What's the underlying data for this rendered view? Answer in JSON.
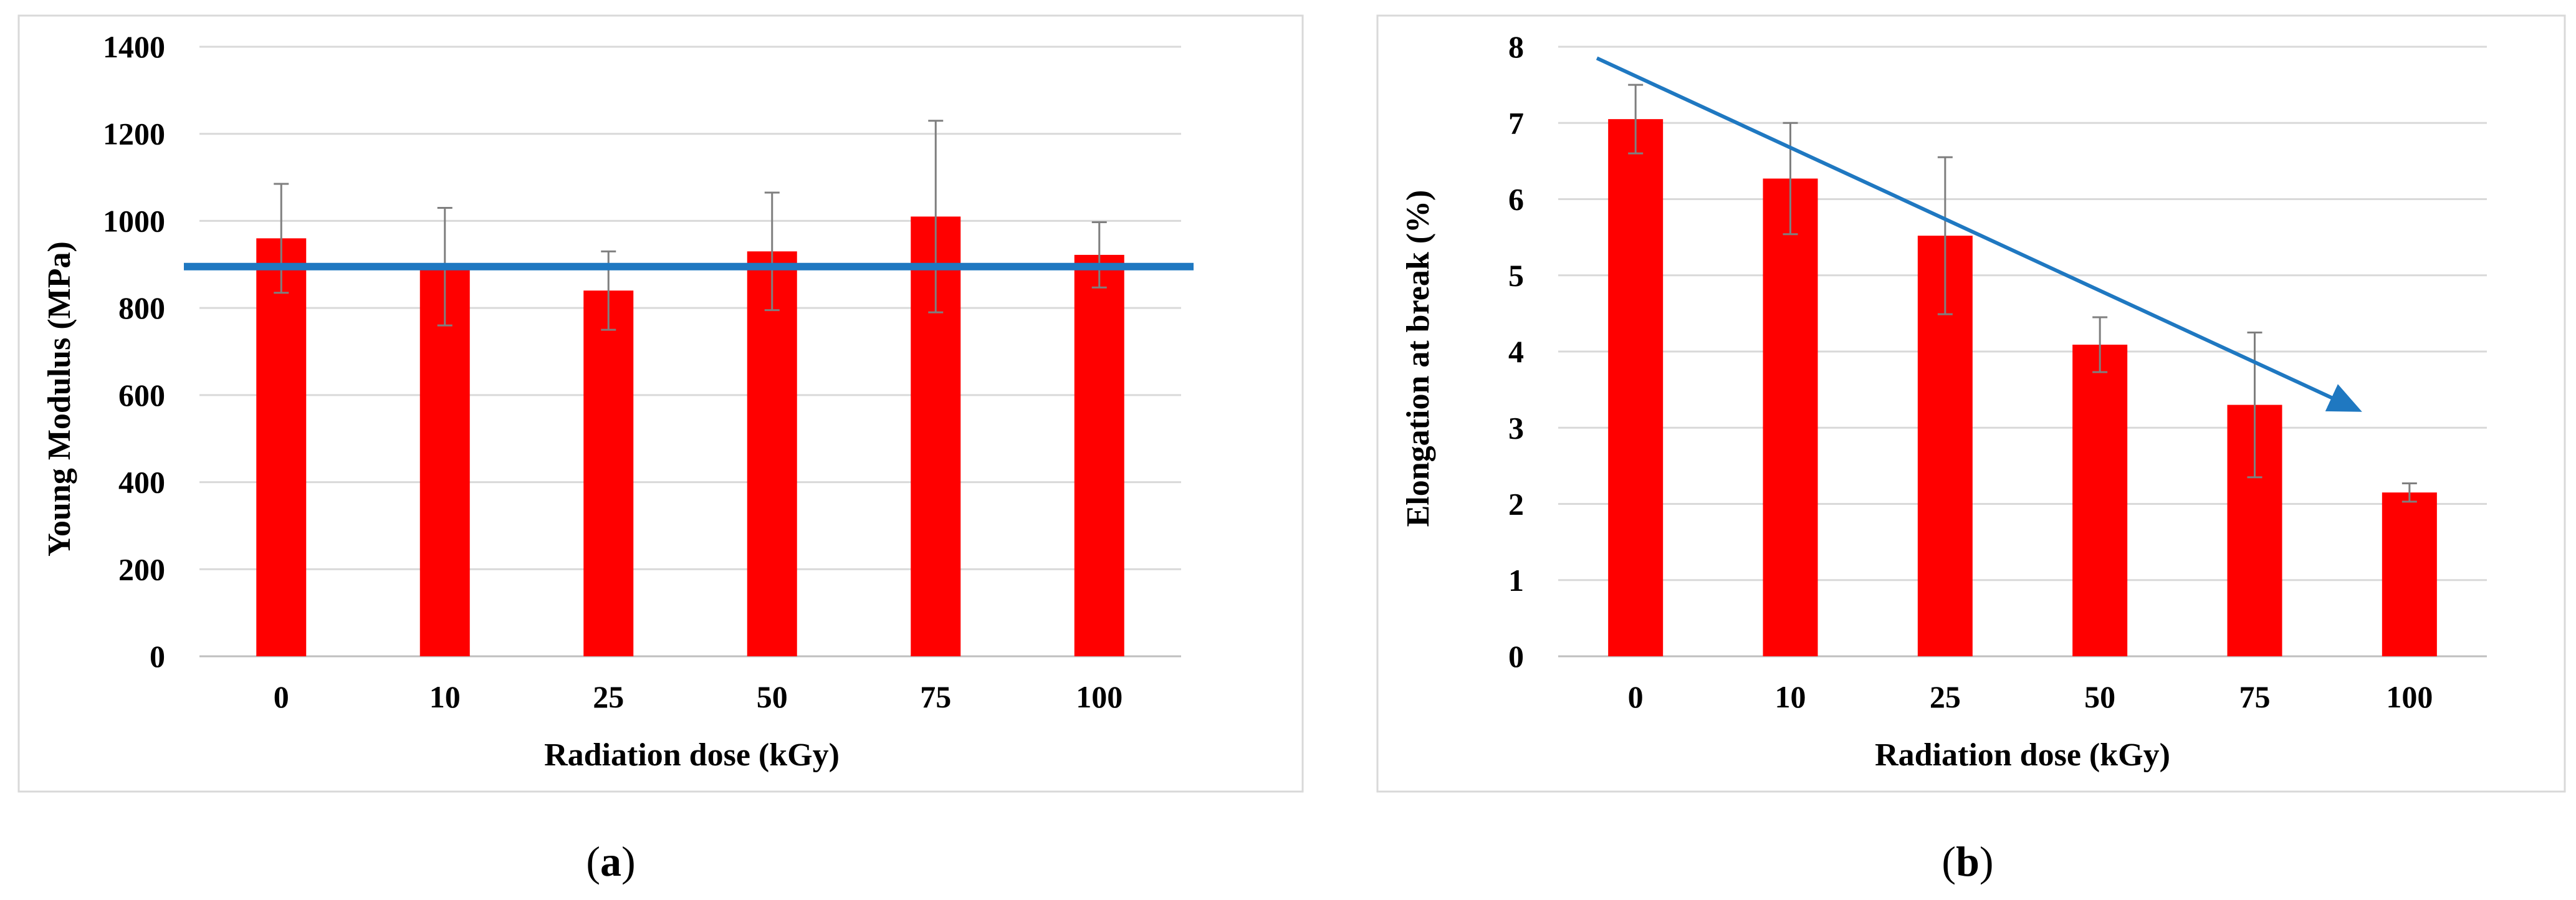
{
  "colors": {
    "bar": "#ff0000",
    "error_bar": "#7f7f7f",
    "grid": "#d9d9d9",
    "axis": "#bfbfbf",
    "frame": "#d9d9d9",
    "trend": "#1f78c1"
  },
  "chart_data": [
    {
      "type": "bar",
      "panel": "a",
      "caption": {
        "open": "(",
        "label": "a",
        "close": ")"
      },
      "xlabel": "Radiation dose (kGy)",
      "ylabel": "Young Modulus (MPa)",
      "categories": [
        "0",
        "10",
        "25",
        "50",
        "75",
        "100"
      ],
      "values": [
        960,
        895,
        840,
        930,
        1010,
        922
      ],
      "errors": [
        125,
        135,
        90,
        135,
        220,
        75
      ],
      "ylim": [
        0,
        1400
      ],
      "yticks": [
        "0",
        "200",
        "400",
        "600",
        "800",
        "1000",
        "1200",
        "1400"
      ],
      "grid": true,
      "trend": {
        "kind": "horizontal",
        "y": 895
      }
    },
    {
      "type": "bar",
      "panel": "b",
      "caption": {
        "open": "(",
        "label": "b",
        "close": ")"
      },
      "xlabel": "Radiation dose (kGy)",
      "ylabel": "Elongation at break (%)",
      "categories": [
        "0",
        "10",
        "25",
        "50",
        "75",
        "100"
      ],
      "values": [
        7.05,
        6.27,
        5.52,
        4.09,
        3.3,
        2.15
      ],
      "errors": [
        0.45,
        0.73,
        1.03,
        0.36,
        0.95,
        0.12
      ],
      "ylim": [
        0,
        8
      ],
      "yticks": [
        "0",
        "1",
        "2",
        "3",
        "4",
        "5",
        "6",
        "7",
        "8"
      ],
      "grid": true,
      "trend": {
        "kind": "arrow",
        "from": [
          0.25,
          7.85
        ],
        "to": [
          5.15,
          3.25
        ]
      }
    }
  ]
}
